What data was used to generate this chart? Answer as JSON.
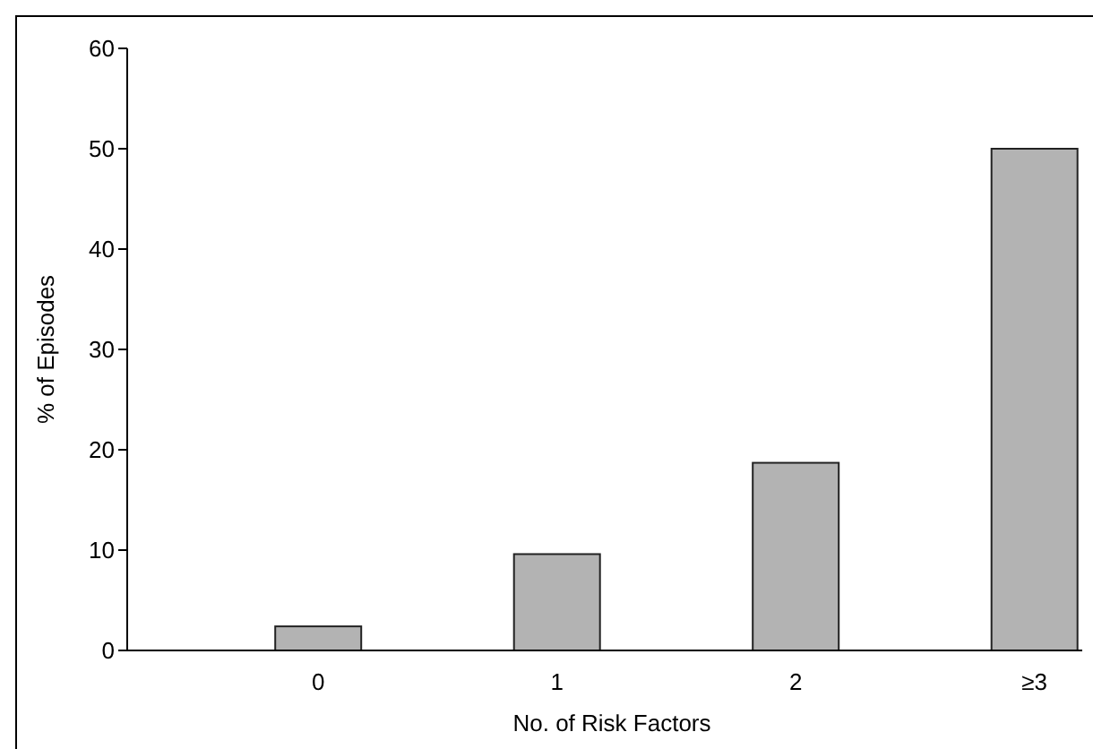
{
  "chart_data": {
    "type": "bar",
    "categories": [
      "0",
      "1",
      "2",
      "≥3"
    ],
    "values": [
      2.4,
      9.6,
      18.7,
      50
    ],
    "color": "#b3b3b3",
    "xlabel": "No. of Risk Factors",
    "ylabel": "% of Episodes",
    "ylim": [
      0,
      60
    ],
    "yticks": [
      0,
      10,
      20,
      30,
      40,
      50,
      60
    ],
    "grid": false
  }
}
